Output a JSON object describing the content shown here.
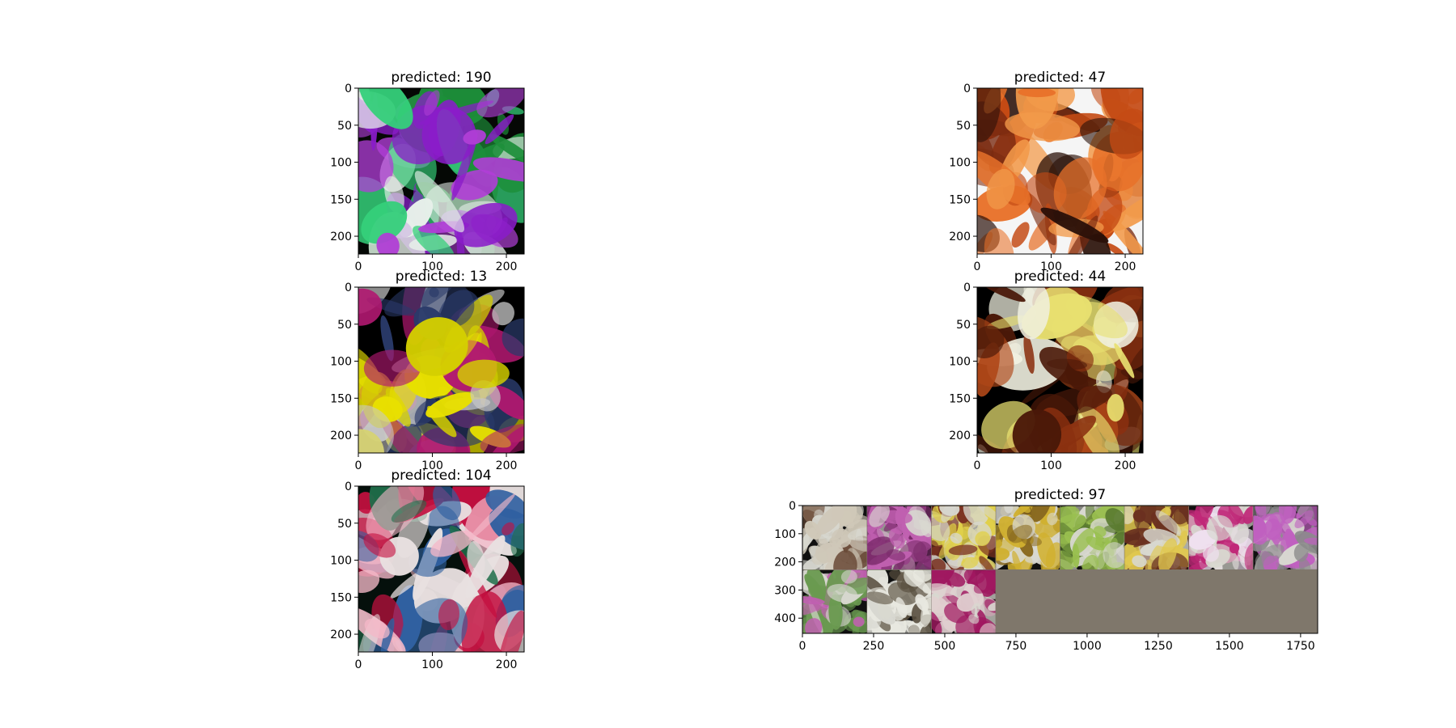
{
  "figure": {
    "background": "#ffffff",
    "text_color": "#000000"
  },
  "chart_data": [
    {
      "type": "image",
      "title": "predicted: 190",
      "xlim": [
        0,
        224
      ],
      "ylim": [
        224,
        0
      ],
      "xticks": [
        0,
        100,
        200
      ],
      "yticks": [
        0,
        50,
        100,
        150,
        200
      ],
      "image_description": "purple orchid flowers with bright green leaves",
      "palette": [
        "#050805",
        "#1d8f3a",
        "#8a1cc9",
        "#b03ed6",
        "#35d07a",
        "#e7f0ea"
      ]
    },
    {
      "type": "image",
      "title": "predicted: 47",
      "xlim": [
        0,
        224
      ],
      "ylim": [
        224,
        0
      ],
      "xticks": [
        0,
        100,
        200
      ],
      "yticks": [
        0,
        50,
        100,
        150,
        200
      ],
      "image_description": "single orange orchid bloom",
      "palette": [
        "#f5f5f5",
        "#e8722a",
        "#f29a4a",
        "#c44a14",
        "#7a2a10",
        "#2a1008"
      ]
    },
    {
      "type": "image",
      "title": "predicted: 13",
      "xlim": [
        0,
        224
      ],
      "ylim": [
        224,
        0
      ],
      "xticks": [
        0,
        100,
        200
      ],
      "yticks": [
        0,
        50,
        100,
        150,
        200
      ],
      "image_description": "yellow orchids on dark background",
      "palette": [
        "#000000",
        "#e8e000",
        "#d4cf00",
        "#b01870",
        "#2a3a6a",
        "#c8c8c8"
      ]
    },
    {
      "type": "image",
      "title": "predicted: 44",
      "xlim": [
        0,
        224
      ],
      "ylim": [
        224,
        0
      ],
      "xticks": [
        0,
        100,
        200
      ],
      "yticks": [
        0,
        50,
        100,
        150,
        200
      ],
      "image_description": "white flower spike over bark mulch",
      "palette": [
        "#000000",
        "#f0f0e0",
        "#e8e070",
        "#8a3010",
        "#b04818",
        "#4a1808"
      ]
    },
    {
      "type": "image",
      "title": "predicted: 104",
      "xlim": [
        0,
        224
      ],
      "ylim": [
        224,
        0
      ],
      "xticks": [
        0,
        100,
        200
      ],
      "yticks": [
        0,
        50,
        100,
        150,
        200
      ],
      "image_description": "red spotted orchids over a grid",
      "palette": [
        "#05100c",
        "#c41040",
        "#e8e0e0",
        "#3060a0",
        "#1f6e4a",
        "#f4b8c8"
      ]
    },
    {
      "type": "image_grid",
      "title": "predicted: 97",
      "xlim": [
        0,
        1810
      ],
      "ylim": [
        454,
        0
      ],
      "xticks": [
        0,
        250,
        500,
        750,
        1000,
        1250,
        1500,
        1750
      ],
      "yticks": [
        0,
        100,
        200,
        300,
        400
      ],
      "grid_rows": 2,
      "grid_cols": 8,
      "tiles_filled": 11,
      "empty_fill": "#7f776b",
      "tile_colors": [
        [
          "#cfc8b8",
          "#6a4a38"
        ],
        [
          "#c060b0",
          "#7a2a6a"
        ],
        [
          "#e0d04a",
          "#7a3020"
        ],
        [
          "#d0b030",
          "#8a6a20"
        ],
        [
          "#9ac050",
          "#5a7a30"
        ],
        [
          "#e0c850",
          "#6a3020"
        ],
        [
          "#c02878",
          "#f0e0f0"
        ],
        [
          "#c060c0",
          "#8a8a8a"
        ],
        [
          "#6a9a50",
          "#c060b0"
        ],
        [
          "#e8e8e0",
          "#5a5040"
        ],
        [
          "#a01860",
          "#e0d0d0"
        ]
      ]
    }
  ]
}
